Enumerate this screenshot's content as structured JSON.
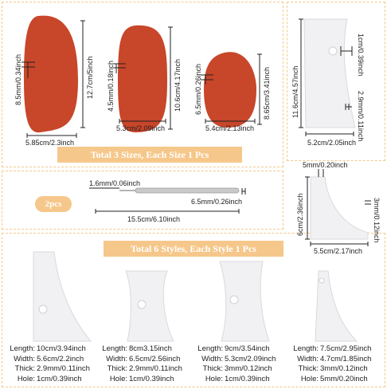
{
  "ribs": {
    "large": {
      "width": "5.85cm/2.3inch",
      "length": "12.7cm/5inch",
      "thick": "8.5mm/0.34inch"
    },
    "medium": {
      "width": "5.3cm/2.09inch",
      "length": "10.6cm/4.17inch",
      "thick": "4.5mm/0.18inch"
    },
    "small": {
      "width": "5.4cm/2.13inch",
      "length": "8.65cm/3.41inch",
      "thick": "6.5mm/0.26inch"
    },
    "banner": "Total 3 Sizes, Each Size 1 Pcs",
    "color": "#c8462a"
  },
  "needle": {
    "pill": "2pcs",
    "tip": "1.6mm/0.06inch",
    "thick": "6.5mm/0.26inch",
    "length": "15.5cm/6.10inch"
  },
  "scraper_right": {
    "length": "11.6cm/4.57inch",
    "hole": "1cm/0.39inch",
    "thick": "2.9mm/0.11inch",
    "width": "5.2cm/2.05inch"
  },
  "corner_piece": {
    "tip": "5mm/0.20inch",
    "height": "6cm/2.36inch",
    "thick": "3mm/0.12inch",
    "width": "5.5cm/2.17inch"
  },
  "styles_banner": "Total 6 Styles, Each Style 1 Pcs",
  "labels": {
    "length": "Length:",
    "width": "Width:",
    "thick": "Thick:",
    "hole": "Hole:"
  },
  "specs": [
    {
      "length": "10cm/3.94inch",
      "width": "5.6cm/2.2inch",
      "thick": "2.9mm/0.11inch",
      "hole": "1cm/0.39inch"
    },
    {
      "length": "8cm3.15inch",
      "width": "6.5cm/2.56inch",
      "thick": "2.9mm/0.11inch",
      "hole": "1cm/0.39inch"
    },
    {
      "length": "9cm/3.54inch",
      "width": "5.3cm/2.09inch",
      "thick": "3mm/0.12inch",
      "hole": "1cm/0.39inch"
    },
    {
      "length": "7.5cm/2.95inch",
      "width": "4.7cm/1.85inch",
      "thick": "3mm/0.12inch",
      "hole": "5mm/0.20inch"
    }
  ]
}
